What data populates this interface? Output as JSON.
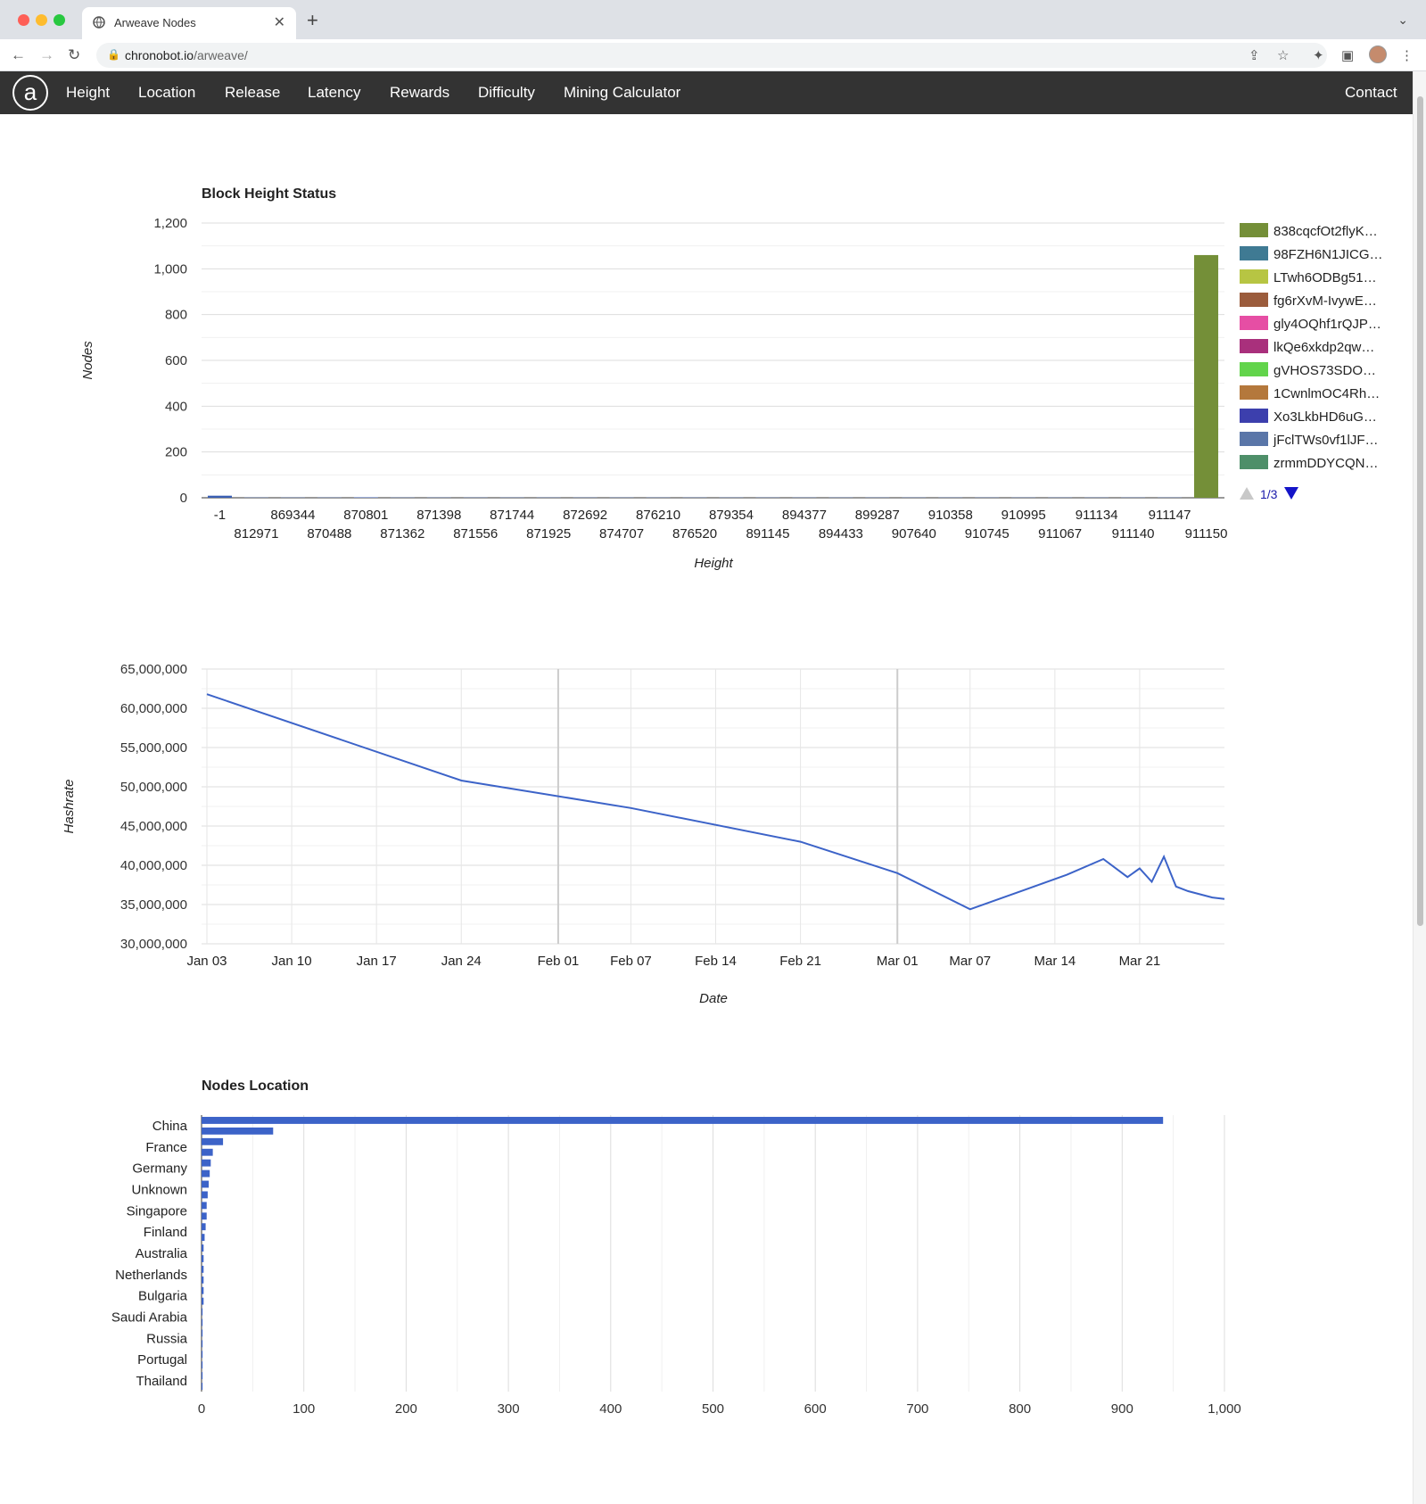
{
  "browser": {
    "tab_title": "Arweave Nodes",
    "url_host": "chronobot.io",
    "url_path": "/arweave/"
  },
  "nav": {
    "logo": "a",
    "links": [
      "Height",
      "Location",
      "Release",
      "Latency",
      "Rewards",
      "Difficulty",
      "Mining Calculator"
    ],
    "contact": "Contact"
  },
  "chart_data": [
    {
      "type": "bar",
      "title": "Block Height Status",
      "xlabel": "Height",
      "ylabel": "Nodes",
      "ylim": [
        0,
        1200
      ],
      "yticks": [
        "0",
        "200",
        "400",
        "600",
        "800",
        "1,000",
        "1,200"
      ],
      "categories": [
        "-1",
        "812971",
        "869344",
        "870488",
        "870801",
        "871362",
        "871398",
        "871556",
        "871744",
        "871925",
        "872692",
        "874707",
        "876210",
        "876520",
        "879354",
        "891145",
        "894377",
        "894433",
        "899287",
        "907640",
        "910358",
        "910745",
        "910995",
        "911067",
        "911134",
        "911140",
        "911147",
        "911150"
      ],
      "values": [
        9,
        1,
        1,
        1,
        2,
        1,
        1,
        1,
        1,
        1,
        1,
        1,
        1,
        1,
        1,
        1,
        1,
        1,
        1,
        1,
        1,
        1,
        1,
        1,
        1,
        1,
        1,
        1060
      ],
      "highlight_color": "#748f38",
      "small_color": "#3a5fb3",
      "legend": [
        {
          "name": "838cqcfOt2flyK…",
          "color": "#748f38"
        },
        {
          "name": "98FZH6N1JICG…",
          "color": "#3f7a93"
        },
        {
          "name": "LTwh6ODBg51…",
          "color": "#b7c543"
        },
        {
          "name": "fg6rXvM-IvywE…",
          "color": "#9b5c3c"
        },
        {
          "name": "gly4OQhf1rQJP…",
          "color": "#e64ea4"
        },
        {
          "name": "lkQe6xkdp2qw…",
          "color": "#a9307c"
        },
        {
          "name": "gVHOS73SDO…",
          "color": "#62d44b"
        },
        {
          "name": "1CwnlmOC4Rh…",
          "color": "#b4783c"
        },
        {
          "name": "Xo3LkbHD6uG…",
          "color": "#3c3fad"
        },
        {
          "name": "jFclTWs0vf1lJF…",
          "color": "#5a76a8"
        },
        {
          "name": "zrmmDDYCQN…",
          "color": "#4e8f69"
        }
      ],
      "legend_page": "1/3"
    },
    {
      "type": "line",
      "title": "",
      "xlabel": "Date",
      "ylabel": "Hashrate",
      "ylim": [
        30000000,
        65000000
      ],
      "yticks": [
        "30,000,000",
        "35,000,000",
        "40,000,000",
        "45,000,000",
        "50,000,000",
        "55,000,000",
        "60,000,000",
        "65,000,000"
      ],
      "xticks": [
        "Jan 03",
        "Jan 10",
        "Jan 17",
        "Jan 24",
        "Feb 01",
        "Feb 07",
        "Feb 14",
        "Feb 21",
        "Mar 01",
        "Mar 07",
        "Mar 14",
        "Mar 21"
      ],
      "x": [
        "Jan 03",
        "Jan 24",
        "Feb 07",
        "Feb 21",
        "Mar 01",
        "Mar 07",
        "Mar 15",
        "Mar 18",
        "Mar 20",
        "Mar 21",
        "Mar 22",
        "Mar 23",
        "Mar 24",
        "Mar 25",
        "Mar 27",
        "Mar 28"
      ],
      "values": [
        61800000,
        50800000,
        47300000,
        43000000,
        39000000,
        34400000,
        38800000,
        40800000,
        38500000,
        39600000,
        37900000,
        41100000,
        37300000,
        36700000,
        35900000,
        35700000
      ],
      "line_color": "#3c63c8"
    },
    {
      "type": "bar",
      "orientation": "horizontal",
      "title": "Nodes Location",
      "xlim": [
        0,
        1000
      ],
      "xticks": [
        "0",
        "100",
        "200",
        "300",
        "400",
        "500",
        "600",
        "700",
        "800",
        "900",
        "1,000"
      ],
      "labeled_categories": [
        "China",
        "France",
        "Germany",
        "Unknown",
        "Singapore",
        "Finland",
        "Australia",
        "Netherlands",
        "Bulgaria",
        "Saudi Arabia",
        "Russia",
        "Portugal",
        "Thailand"
      ],
      "values": [
        940,
        70,
        21,
        11,
        9,
        8,
        7,
        6,
        5,
        5,
        4,
        3,
        2,
        2,
        2,
        2,
        2,
        2,
        1,
        1,
        1,
        1,
        1,
        1,
        1,
        1
      ],
      "bar_color": "#3c63c8"
    }
  ]
}
